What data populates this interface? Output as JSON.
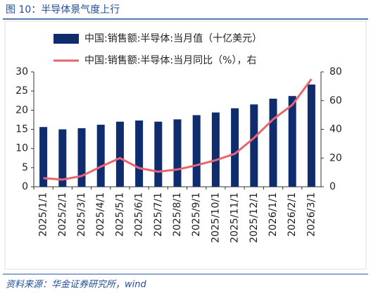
{
  "header": {
    "title": "图 10：半导体景气度上行"
  },
  "chart_data": {
    "type": "bar-line",
    "categories": [
      "2025/1/1",
      "2025/2/1",
      "2025/3/1",
      "2025/4/1",
      "2025/5/1",
      "2025/6/1",
      "2025/7/1",
      "2025/8/1",
      "2025/9/1",
      "2025/10/1",
      "2025/11/1",
      "2025/12/1",
      "2026/1/1",
      "2026/2/1",
      "2026/3/1"
    ],
    "series": [
      {
        "name": "中国:销售额:半导体:当月值（十亿美元）",
        "type": "bar",
        "color": "#0e2c6e",
        "values": [
          15.6,
          15.0,
          15.3,
          16.2,
          17.0,
          17.3,
          17.0,
          17.6,
          18.7,
          19.4,
          20.5,
          21.5,
          23.0,
          23.7,
          26.7
        ]
      },
      {
        "name": "中国:销售额:半导体:当月同比（%），右",
        "type": "line",
        "color": "#ea6470",
        "axis": "y2",
        "values": [
          6,
          5,
          7.5,
          14,
          20,
          13,
          10.5,
          12,
          15,
          18.5,
          23,
          34,
          47,
          57,
          75
        ]
      }
    ],
    "ylim": [
      0,
      30
    ],
    "yticks": [
      0,
      5,
      10,
      15,
      20,
      25,
      30
    ],
    "y2lim": [
      0,
      80
    ],
    "y2ticks": [
      0,
      20,
      40,
      60,
      80
    ],
    "legend": "top"
  },
  "footer": {
    "source": "资料来源：华金证券研究所，wind"
  }
}
